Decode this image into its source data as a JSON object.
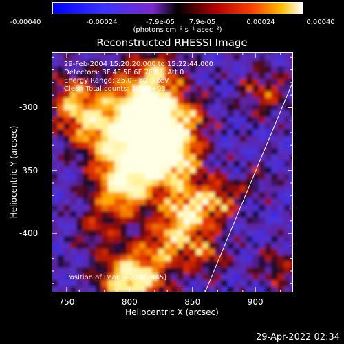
{
  "chart_data": {
    "type": "heatmap",
    "title": "Reconstructed RHESSI Image",
    "xlabel": "Heliocentric X (arcsec)",
    "ylabel": "Heliocentric Y (arcsec)",
    "xlim": [
      738,
      930
    ],
    "ylim": [
      -447,
      -256
    ],
    "x_ticks": [
      750,
      800,
      850,
      900
    ],
    "y_ticks": [
      -300,
      -350,
      -400
    ],
    "colorbar": {
      "ticks": [
        "-0.00040",
        "-0.00024",
        "-7.9e-05",
        "7.9e-05",
        "0.00024",
        "0.00040"
      ],
      "range": [
        -0.0004,
        0.0004
      ],
      "unit_label": "(photons cm⁻² s⁻¹ asec⁻²)"
    },
    "annotations": [
      "29-Feb-2004 15:20:20.000 to 15:22:44.000",
      "Detectors: 3F 4F 5F 6F 7F 8F, Att 0",
      "Energy Range: 25.0 - 50.0 keV",
      "Clean    Total counts: 1.72E+03"
    ],
    "peak_label": "Position of Peak = [802,-445]",
    "peak_position": [
      802,
      -445
    ],
    "limb_line": {
      "x": [
        860,
        930
      ],
      "y": [
        -447,
        -279
      ]
    },
    "grid": false
  },
  "footer_timestamp": "29-Apr-2022 02:34",
  "colors": {
    "background": "#000000",
    "limb": "#ffffff"
  }
}
